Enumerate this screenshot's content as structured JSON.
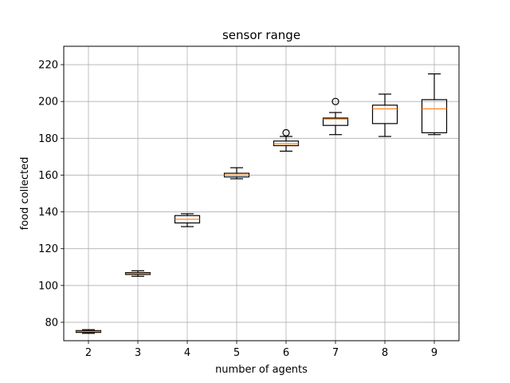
{
  "chart_data": {
    "type": "box",
    "title": "sensor range",
    "xlabel": "number of agents",
    "ylabel": "food collected",
    "ylim": [
      70,
      230
    ],
    "yticks": [
      80,
      100,
      120,
      140,
      160,
      180,
      200,
      220
    ],
    "grid": true,
    "colors": {
      "box": "#000000",
      "median": "#ff7f0e",
      "grid": "#b0b0b0"
    },
    "boxes": [
      {
        "category": "2",
        "whislo": 74,
        "q1": 74.5,
        "med": 75,
        "q3": 75.5,
        "whishi": 76,
        "fliers": []
      },
      {
        "category": "3",
        "whislo": 105,
        "q1": 106,
        "med": 106.5,
        "q3": 107,
        "whishi": 108,
        "fliers": []
      },
      {
        "category": "4",
        "whislo": 132,
        "q1": 134,
        "med": 136,
        "q3": 138,
        "whishi": 139,
        "fliers": []
      },
      {
        "category": "5",
        "whislo": 158,
        "q1": 159,
        "med": 160,
        "q3": 161,
        "whishi": 164,
        "fliers": []
      },
      {
        "category": "6",
        "whislo": 173,
        "q1": 176,
        "med": 177,
        "q3": 178.5,
        "whishi": 181,
        "fliers": [
          183
        ]
      },
      {
        "category": "7",
        "whislo": 182,
        "q1": 187,
        "med": 190.5,
        "q3": 191,
        "whishi": 194,
        "fliers": [
          200
        ]
      },
      {
        "category": "8",
        "whislo": 181,
        "q1": 188,
        "med": 196,
        "q3": 198,
        "whishi": 204,
        "fliers": []
      },
      {
        "category": "9",
        "whislo": 182,
        "q1": 183,
        "med": 196,
        "q3": 201,
        "whishi": 215,
        "fliers": []
      }
    ]
  }
}
